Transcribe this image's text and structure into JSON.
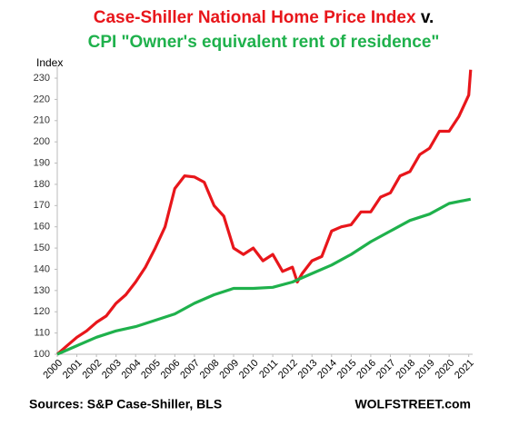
{
  "chart_data": {
    "type": "line",
    "title": {
      "line1": "Case-Shiller National Home Price Index",
      "joiner": "v.",
      "line2": "CPI \"Owner's equivalent rent of residence\""
    },
    "y_label": "Index",
    "source": "Sources: S&P Case-Shiller, BLS",
    "watermark": "WOLFSTREET.com",
    "xlim": [
      2000,
      2021.2
    ],
    "xticks": [
      2000,
      2001,
      2002,
      2003,
      2004,
      2005,
      2006,
      2007,
      2008,
      2009,
      2010,
      2011,
      2012,
      2013,
      2014,
      2015,
      2016,
      2017,
      2018,
      2019,
      2020,
      2021
    ],
    "ylim": [
      100,
      236
    ],
    "yticks": [
      100,
      110,
      120,
      130,
      140,
      150,
      160,
      170,
      180,
      190,
      200,
      210,
      220,
      230
    ],
    "grid": false,
    "series": [
      {
        "name": "Case-Shiller National Home Price Index",
        "color": "#e8161b",
        "x": [
          2000,
          2000.5,
          2001,
          2001.5,
          2002,
          2002.5,
          2003,
          2003.5,
          2004,
          2004.5,
          2005,
          2005.5,
          2006,
          2006.5,
          2007,
          2007.5,
          2008,
          2008.5,
          2009,
          2009.5,
          2010,
          2010.5,
          2011,
          2011.5,
          2012,
          2012.25,
          2012.5,
          2013,
          2013.5,
          2014,
          2014.5,
          2015,
          2015.5,
          2016,
          2016.5,
          2017,
          2017.5,
          2018,
          2018.5,
          2019,
          2019.5,
          2020,
          2020.5,
          2021,
          2021.1
        ],
        "values": [
          100,
          104,
          108,
          111,
          115,
          118,
          124,
          128,
          134,
          141,
          150,
          160,
          178,
          184,
          183.5,
          181,
          170,
          165,
          150,
          147,
          150,
          144,
          147,
          139,
          141,
          134,
          138,
          144,
          146,
          158,
          160,
          161,
          167,
          167,
          174,
          176,
          184,
          186,
          194,
          197,
          205,
          205,
          212,
          222,
          234
        ]
      },
      {
        "name": "CPI \"Owner's equivalent rent of residence\"",
        "color": "#1fb14c",
        "x": [
          2000,
          2001,
          2002,
          2003,
          2004,
          2005,
          2006,
          2007,
          2008,
          2009,
          2010,
          2011,
          2012,
          2013,
          2014,
          2015,
          2016,
          2017,
          2018,
          2019,
          2020,
          2021.1
        ],
        "values": [
          100,
          104,
          108,
          111,
          113,
          116,
          119,
          124,
          128,
          131,
          131,
          131.5,
          134,
          138,
          142,
          147,
          153,
          158,
          163,
          166,
          171,
          173
        ]
      }
    ]
  }
}
